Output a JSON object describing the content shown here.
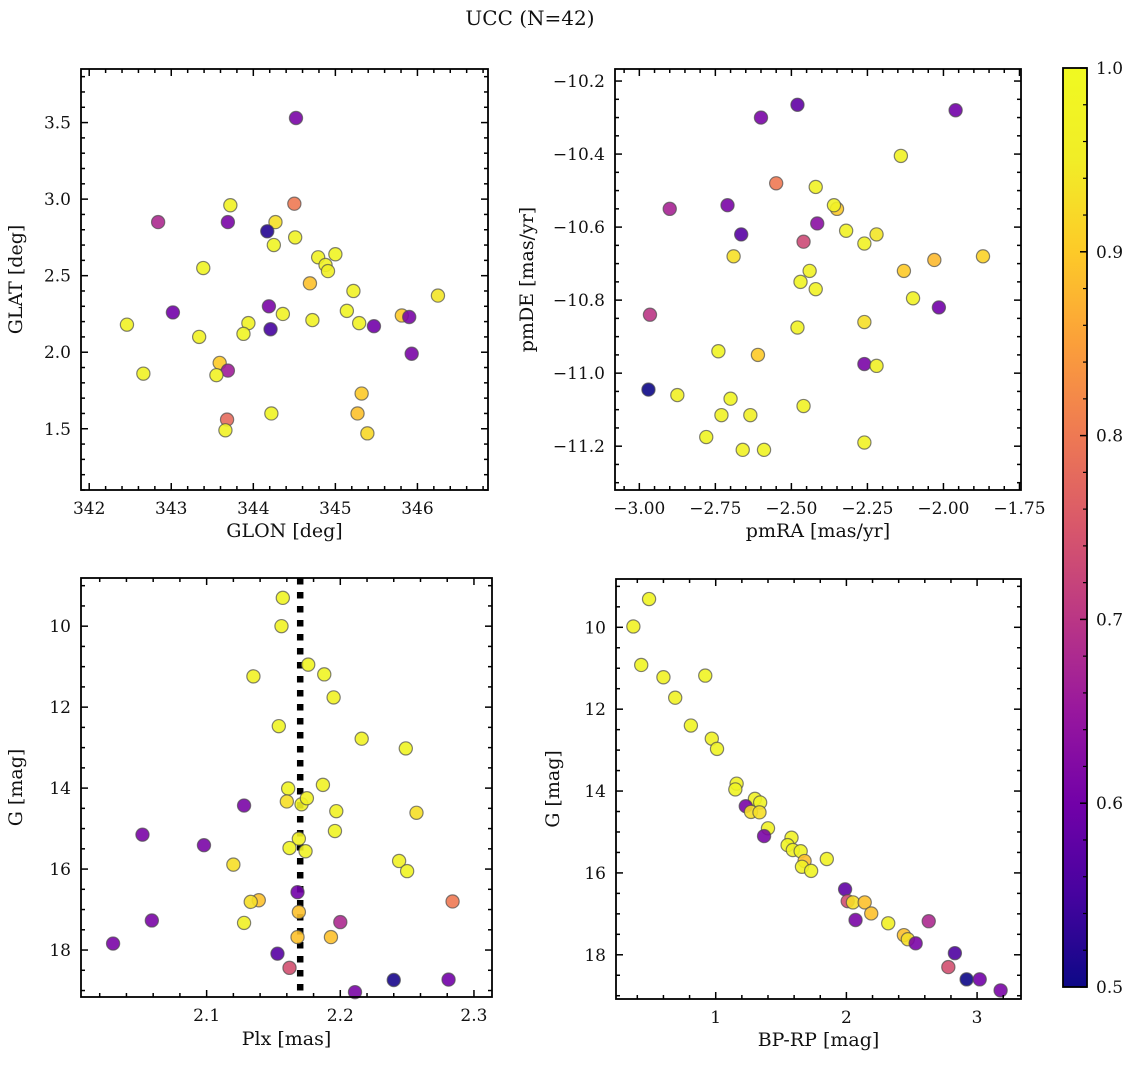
{
  "title": "UCC (N=42)",
  "colorbar": {
    "vmin": 0.5,
    "vmax": 1.0,
    "cmap": "plasma",
    "tick_values": [
      1.0,
      0.9,
      0.8,
      0.7,
      0.6,
      0.5
    ],
    "tick_labels": [
      "1.0",
      "0.9",
      "0.8",
      "0.7",
      "0.6",
      "0.5"
    ],
    "minor_step": 0.02
  },
  "chart_data": [
    {
      "type": "scatter",
      "xlabel": "GLON [deg]",
      "ylabel": "GLAT [deg]",
      "xlim": [
        341.9,
        346.86
      ],
      "ylim": [
        1.1,
        3.85
      ],
      "xtick_values": [
        342,
        343,
        344,
        345,
        346
      ],
      "xtick_labels": [
        "342",
        "343",
        "344",
        "345",
        "346"
      ],
      "ytick_values": [
        1.5,
        2.0,
        2.5,
        3.0,
        3.5
      ],
      "ytick_labels": [
        "1.5",
        "2.0",
        "2.5",
        "3.0",
        "3.5"
      ],
      "x_minor": 0.2,
      "y_minor": 0.1,
      "xlabel_pad": 47,
      "ylabel_pad": 59,
      "points": [
        [
          344.52,
          3.53,
          0.61
        ],
        [
          343.72,
          2.96,
          0.97
        ],
        [
          344.5,
          2.97,
          0.8
        ],
        [
          342.84,
          2.85,
          0.68
        ],
        [
          343.69,
          2.85,
          0.61
        ],
        [
          344.27,
          2.85,
          0.93
        ],
        [
          344.17,
          2.79,
          0.52
        ],
        [
          344.51,
          2.75,
          0.97
        ],
        [
          344.25,
          2.7,
          0.98
        ],
        [
          344.79,
          2.62,
          0.97
        ],
        [
          345.0,
          2.64,
          0.98
        ],
        [
          344.88,
          2.57,
          0.97
        ],
        [
          344.91,
          2.53,
          0.96
        ],
        [
          343.39,
          2.55,
          0.98
        ],
        [
          344.69,
          2.45,
          0.89
        ],
        [
          345.22,
          2.4,
          0.97
        ],
        [
          346.25,
          2.37,
          0.94
        ],
        [
          344.19,
          2.3,
          0.61
        ],
        [
          344.36,
          2.25,
          0.97
        ],
        [
          343.02,
          2.26,
          0.6
        ],
        [
          345.14,
          2.27,
          0.98
        ],
        [
          344.72,
          2.21,
          0.97
        ],
        [
          345.29,
          2.19,
          0.97
        ],
        [
          345.47,
          2.17,
          0.6
        ],
        [
          345.81,
          2.24,
          0.9
        ],
        [
          345.9,
          2.23,
          0.61
        ],
        [
          342.46,
          2.18,
          0.97
        ],
        [
          343.94,
          2.19,
          0.97
        ],
        [
          343.88,
          2.12,
          0.98
        ],
        [
          344.21,
          2.15,
          0.55
        ],
        [
          343.34,
          2.1,
          0.97
        ],
        [
          345.93,
          1.99,
          0.61
        ],
        [
          343.59,
          1.93,
          0.9
        ],
        [
          343.69,
          1.88,
          0.66
        ],
        [
          343.55,
          1.85,
          0.97
        ],
        [
          342.66,
          1.86,
          0.97
        ],
        [
          345.32,
          1.73,
          0.9
        ],
        [
          344.22,
          1.6,
          0.98
        ],
        [
          345.27,
          1.6,
          0.89
        ],
        [
          343.68,
          1.56,
          0.78
        ],
        [
          343.66,
          1.49,
          0.97
        ],
        [
          345.39,
          1.47,
          0.92
        ]
      ]
    },
    {
      "type": "scatter",
      "xlabel": "pmRA [mas/yr]",
      "ylabel": "pmDE [mas/yr]",
      "xlim": [
        -3.08,
        -1.745
      ],
      "ylim": [
        -11.32,
        -10.167
      ],
      "xtick_values": [
        -3.0,
        -2.75,
        -2.5,
        -2.25,
        -2.0,
        -1.75
      ],
      "xtick_labels": [
        "−3.00",
        "−2.75",
        "−2.50",
        "−2.25",
        "−2.00",
        "−1.75"
      ],
      "ytick_values": [
        -11.2,
        -11.0,
        -10.8,
        -10.6,
        -10.4,
        -10.2
      ],
      "ytick_labels": [
        "−11.2",
        "−11.0",
        "−10.8",
        "−10.6",
        "−10.4",
        "−10.2"
      ],
      "x_minor": 0.05,
      "y_minor": 0.05,
      "xlabel_pad": 47,
      "ylabel_pad": 82,
      "points": [
        [
          -2.48,
          -10.265,
          0.58
        ],
        [
          -2.6,
          -10.3,
          0.61
        ],
        [
          -1.96,
          -10.28,
          0.6
        ],
        [
          -2.14,
          -10.405,
          0.97
        ],
        [
          -2.55,
          -10.48,
          0.8
        ],
        [
          -2.42,
          -10.49,
          0.97
        ],
        [
          -2.9,
          -10.55,
          0.67
        ],
        [
          -2.71,
          -10.54,
          0.61
        ],
        [
          -2.35,
          -10.55,
          0.9
        ],
        [
          -2.36,
          -10.54,
          0.97
        ],
        [
          -2.415,
          -10.59,
          0.63
        ],
        [
          -2.665,
          -10.62,
          0.57
        ],
        [
          -2.46,
          -10.64,
          0.73
        ],
        [
          -2.32,
          -10.61,
          0.97
        ],
        [
          -2.26,
          -10.645,
          0.97
        ],
        [
          -2.22,
          -10.62,
          0.94
        ],
        [
          -2.69,
          -10.68,
          0.93
        ],
        [
          -2.03,
          -10.69,
          0.88
        ],
        [
          -1.87,
          -10.68,
          0.91
        ],
        [
          -2.13,
          -10.72,
          0.9
        ],
        [
          -2.44,
          -10.72,
          0.97
        ],
        [
          -2.47,
          -10.75,
          0.98
        ],
        [
          -2.42,
          -10.77,
          0.97
        ],
        [
          -2.1,
          -10.795,
          0.97
        ],
        [
          -2.015,
          -10.82,
          0.6
        ],
        [
          -2.965,
          -10.84,
          0.7
        ],
        [
          -2.26,
          -10.86,
          0.93
        ],
        [
          -2.48,
          -10.875,
          0.97
        ],
        [
          -2.74,
          -10.94,
          0.98
        ],
        [
          -2.61,
          -10.95,
          0.9
        ],
        [
          -2.26,
          -10.975,
          0.61
        ],
        [
          -2.22,
          -10.98,
          0.96
        ],
        [
          -2.97,
          -11.045,
          0.5
        ],
        [
          -2.875,
          -11.06,
          0.96
        ],
        [
          -2.7,
          -11.07,
          0.98
        ],
        [
          -2.46,
          -11.09,
          0.97
        ],
        [
          -2.73,
          -11.115,
          0.97
        ],
        [
          -2.635,
          -11.115,
          0.96
        ],
        [
          -2.78,
          -11.175,
          0.98
        ],
        [
          -2.66,
          -11.21,
          0.97
        ],
        [
          -2.59,
          -11.21,
          0.98
        ],
        [
          -2.26,
          -11.19,
          0.97
        ]
      ]
    },
    {
      "type": "scatter",
      "xlabel": "Plx [mas]",
      "ylabel": "G [mag]",
      "xlim": [
        2.006,
        2.3135
      ],
      "ylim": [
        19.16,
        8.81
      ],
      "xtick_values": [
        2.1,
        2.2,
        2.3
      ],
      "xtick_labels": [
        "2.1",
        "2.2",
        "2.3"
      ],
      "ytick_values": [
        18,
        16,
        14,
        12,
        10
      ],
      "ytick_labels": [
        "18",
        "16",
        "14",
        "12",
        "10"
      ],
      "x_minor": 0.02,
      "y_minor": 0.5,
      "xlabel_pad": 48,
      "ylabel_pad": 59,
      "vline": {
        "x": 2.17,
        "style": "dotted"
      },
      "points": [
        [
          2.157,
          9.3,
          0.98
        ],
        [
          2.156,
          10.0,
          0.97
        ],
        [
          2.176,
          10.95,
          0.98
        ],
        [
          2.135,
          11.24,
          0.97
        ],
        [
          2.188,
          11.19,
          0.98
        ],
        [
          2.195,
          11.76,
          0.97
        ],
        [
          2.154,
          12.47,
          0.98
        ],
        [
          2.216,
          12.78,
          0.97
        ],
        [
          2.249,
          13.02,
          0.98
        ],
        [
          2.187,
          13.92,
          0.97
        ],
        [
          2.161,
          14.01,
          0.98
        ],
        [
          2.16,
          14.33,
          0.93
        ],
        [
          2.171,
          14.4,
          0.97
        ],
        [
          2.175,
          14.25,
          0.97
        ],
        [
          2.128,
          14.43,
          0.61
        ],
        [
          2.197,
          14.57,
          0.97
        ],
        [
          2.257,
          14.61,
          0.93
        ],
        [
          2.196,
          15.06,
          0.98
        ],
        [
          2.052,
          15.15,
          0.61
        ],
        [
          2.098,
          15.41,
          0.61
        ],
        [
          2.169,
          15.25,
          0.97
        ],
        [
          2.162,
          15.48,
          0.98
        ],
        [
          2.174,
          15.56,
          0.97
        ],
        [
          2.12,
          15.89,
          0.93
        ],
        [
          2.244,
          15.8,
          0.97
        ],
        [
          2.25,
          16.05,
          0.98
        ],
        [
          2.168,
          16.57,
          0.6
        ],
        [
          2.139,
          16.77,
          0.89
        ],
        [
          2.133,
          16.81,
          0.93
        ],
        [
          2.284,
          16.8,
          0.8
        ],
        [
          2.169,
          17.06,
          0.89
        ],
        [
          2.128,
          17.33,
          0.96
        ],
        [
          2.2,
          17.31,
          0.68
        ],
        [
          2.168,
          17.68,
          0.89
        ],
        [
          2.193,
          17.68,
          0.89
        ],
        [
          2.059,
          17.27,
          0.61
        ],
        [
          2.03,
          17.84,
          0.61
        ],
        [
          2.153,
          18.09,
          0.57
        ],
        [
          2.162,
          18.44,
          0.74
        ],
        [
          2.24,
          18.74,
          0.51
        ],
        [
          2.281,
          18.73,
          0.6
        ],
        [
          2.211,
          19.04,
          0.61
        ]
      ]
    },
    {
      "type": "scatter",
      "xlabel": "BP-RP [mag]",
      "ylabel": "G [mag]",
      "xlim": [
        0.237,
        3.336
      ],
      "ylim": [
        19.08,
        8.82
      ],
      "xtick_values": [
        1,
        2,
        3
      ],
      "xtick_labels": [
        "1",
        "2",
        "3"
      ],
      "ytick_values": [
        18,
        16,
        14,
        12,
        10
      ],
      "ytick_labels": [
        "18",
        "16",
        "14",
        "12",
        "10"
      ],
      "x_minor": 0.2,
      "y_minor": 0.5,
      "xlabel_pad": 47,
      "ylabel_pad": 57,
      "points": [
        [
          0.49,
          9.31,
          0.98
        ],
        [
          0.37,
          9.98,
          0.97
        ],
        [
          0.43,
          10.92,
          0.98
        ],
        [
          0.6,
          11.22,
          0.97
        ],
        [
          0.92,
          11.18,
          0.98
        ],
        [
          0.69,
          11.72,
          0.97
        ],
        [
          0.81,
          12.4,
          0.98
        ],
        [
          0.97,
          12.72,
          0.97
        ],
        [
          1.01,
          12.97,
          0.98
        ],
        [
          1.16,
          13.82,
          0.97
        ],
        [
          1.15,
          13.96,
          0.98
        ],
        [
          1.3,
          14.19,
          0.97
        ],
        [
          1.34,
          14.28,
          0.98
        ],
        [
          1.23,
          14.37,
          0.61
        ],
        [
          1.27,
          14.51,
          0.93
        ],
        [
          1.335,
          14.52,
          0.93
        ],
        [
          1.4,
          14.91,
          0.97
        ],
        [
          1.37,
          15.1,
          0.61
        ],
        [
          1.58,
          15.14,
          0.97
        ],
        [
          1.55,
          15.32,
          0.98
        ],
        [
          1.59,
          15.44,
          0.97
        ],
        [
          1.65,
          15.47,
          0.98
        ],
        [
          1.68,
          15.71,
          0.89
        ],
        [
          1.66,
          15.85,
          0.97
        ],
        [
          1.73,
          15.95,
          0.98
        ],
        [
          1.85,
          15.66,
          0.97
        ],
        [
          1.99,
          16.4,
          0.58
        ],
        [
          2.01,
          16.69,
          0.74
        ],
        [
          2.05,
          16.72,
          0.93
        ],
        [
          2.14,
          16.72,
          0.89
        ],
        [
          2.19,
          16.99,
          0.89
        ],
        [
          2.07,
          17.15,
          0.61
        ],
        [
          2.32,
          17.23,
          0.96
        ],
        [
          2.63,
          17.18,
          0.68
        ],
        [
          2.44,
          17.52,
          0.89
        ],
        [
          2.47,
          17.62,
          0.93
        ],
        [
          2.53,
          17.72,
          0.61
        ],
        [
          2.83,
          17.96,
          0.56
        ],
        [
          2.78,
          18.3,
          0.74
        ],
        [
          2.92,
          18.6,
          0.5
        ],
        [
          3.02,
          18.6,
          0.6
        ],
        [
          3.18,
          18.87,
          0.61
        ]
      ]
    }
  ],
  "style": {
    "marker_radius": 6.6,
    "marker_edge_color": "#4d4d4d",
    "axis_color": "#000000",
    "background": "#ffffff"
  }
}
